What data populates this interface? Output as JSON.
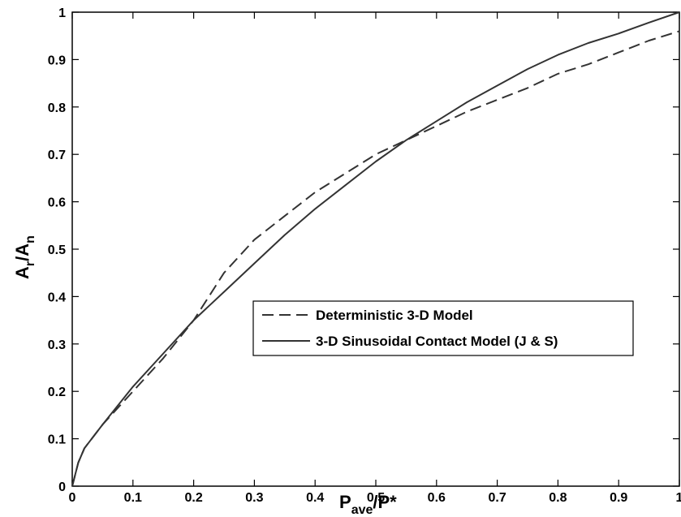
{
  "chart_data": {
    "type": "line",
    "title": "",
    "xlabel": {
      "main": "P",
      "sub": "ave",
      "suffix": "/P*"
    },
    "ylabel": {
      "a": "A",
      "a_sub": "r",
      "mid": "/A",
      "b_sub": "n"
    },
    "xlim": [
      0,
      1
    ],
    "ylim": [
      0,
      1
    ],
    "xticks": [
      0,
      0.1,
      0.2,
      0.3,
      0.4,
      0.5,
      0.6,
      0.7,
      0.8,
      0.9,
      1
    ],
    "xtick_labels": [
      "0",
      "0.1",
      "0.2",
      "0.3",
      "0.4",
      "0.5",
      "0.6",
      "0.7",
      "0.8",
      "0.9",
      "1"
    ],
    "yticks": [
      0,
      0.1,
      0.2,
      0.3,
      0.4,
      0.5,
      0.6,
      0.7,
      0.8,
      0.9,
      1
    ],
    "ytick_labels": [
      "0",
      "0.1",
      "0.2",
      "0.3",
      "0.4",
      "0.5",
      "0.6",
      "0.7",
      "0.8",
      "0.9",
      "1"
    ],
    "grid": false,
    "legend_position": "center-right",
    "series": [
      {
        "name": "Deterministic 3-D Model",
        "style": "dashed",
        "color": "#333333",
        "x": [
          0,
          0.01,
          0.02,
          0.05,
          0.1,
          0.15,
          0.2,
          0.22,
          0.25,
          0.3,
          0.35,
          0.4,
          0.45,
          0.5,
          0.55,
          0.6,
          0.65,
          0.7,
          0.75,
          0.8,
          0.85,
          0.9,
          0.95,
          1.0
        ],
        "y": [
          0,
          0.05,
          0.08,
          0.13,
          0.2,
          0.27,
          0.35,
          0.39,
          0.45,
          0.52,
          0.57,
          0.62,
          0.66,
          0.7,
          0.73,
          0.76,
          0.79,
          0.815,
          0.84,
          0.87,
          0.89,
          0.915,
          0.94,
          0.96
        ]
      },
      {
        "name": "3-D Sinusoidal Contact Model (J & S)",
        "style": "solid",
        "color": "#333333",
        "x": [
          0,
          0.01,
          0.02,
          0.05,
          0.1,
          0.15,
          0.2,
          0.25,
          0.3,
          0.35,
          0.4,
          0.45,
          0.5,
          0.55,
          0.6,
          0.65,
          0.7,
          0.75,
          0.8,
          0.85,
          0.9,
          0.95,
          1.0
        ],
        "y": [
          0,
          0.05,
          0.08,
          0.13,
          0.21,
          0.28,
          0.35,
          0.41,
          0.47,
          0.53,
          0.585,
          0.635,
          0.685,
          0.73,
          0.77,
          0.81,
          0.845,
          0.88,
          0.91,
          0.935,
          0.955,
          0.978,
          1.0
        ]
      }
    ]
  }
}
